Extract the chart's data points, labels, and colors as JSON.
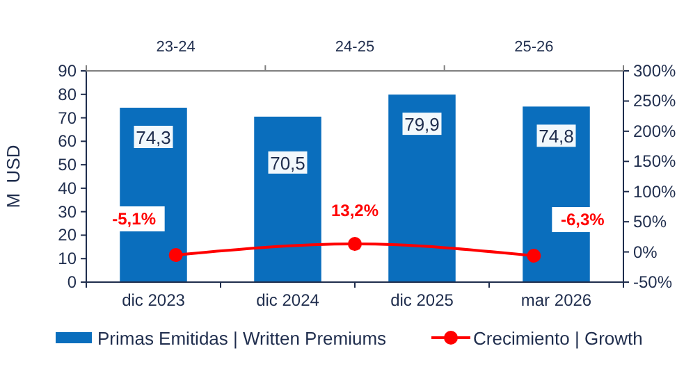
{
  "chart_data": [
    {
      "type": "bar",
      "ylabel": "M  USD",
      "categories": [
        "dic 2023",
        "dic 2024",
        "dic 2025",
        "mar 2026"
      ],
      "ylim": [
        0,
        90
      ],
      "yticks": [
        0,
        10,
        20,
        30,
        40,
        50,
        60,
        70,
        80,
        90
      ],
      "series": [
        {
          "name": "Primas Emitidas | Written Premiums",
          "color": "#0a6ebd",
          "values": [
            74.3,
            70.5,
            79.9,
            74.8
          ],
          "value_labels": [
            "74,3",
            "70,5",
            "79,9",
            "74,8"
          ]
        }
      ],
      "grid": false,
      "legend": "bottom"
    },
    {
      "type": "line",
      "categories": [
        "23-24",
        "24-25",
        "25-26"
      ],
      "ylim": [
        -50,
        300
      ],
      "yticks": [
        {
          "value": -50,
          "label": "-50%"
        },
        {
          "value": 0,
          "label": "0%"
        },
        {
          "value": 50,
          "label": "50%"
        },
        {
          "value": 100,
          "label": "100%"
        },
        {
          "value": 150,
          "label": "150%"
        },
        {
          "value": 200,
          "label": "200%"
        },
        {
          "value": 250,
          "label": "250%"
        },
        {
          "value": 300,
          "label": "300%"
        }
      ],
      "series": [
        {
          "name": "Crecimiento | Growth",
          "color": "#ff0000",
          "values": [
            -5.1,
            13.2,
            -6.3
          ],
          "value_labels": [
            "-5,1%",
            "13,2%",
            "-6,3%"
          ]
        }
      ],
      "marker": "circle",
      "grid": false,
      "legend": "bottom"
    }
  ]
}
